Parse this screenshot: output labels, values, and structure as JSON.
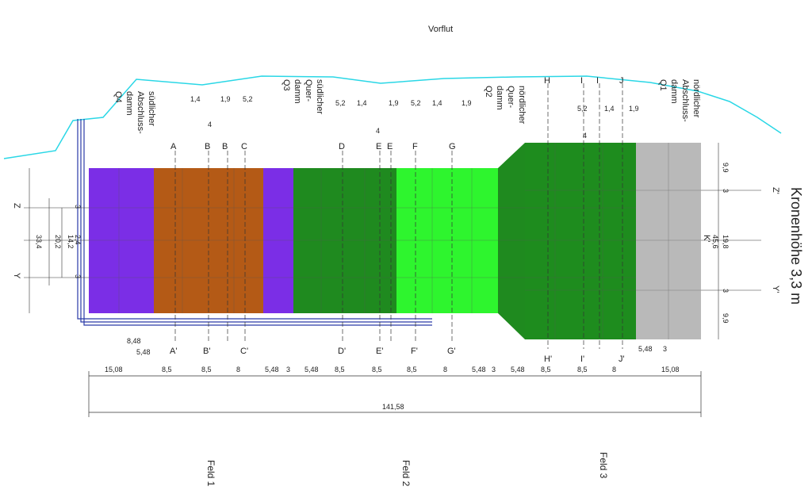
{
  "title": "Vorflut",
  "crest_label": "Kronenhöhe 3,3 m",
  "fields": [
    "Feld 1",
    "Feld 2",
    "Feld 3"
  ],
  "dams": {
    "q4": [
      "südlicher",
      "Abschluss-",
      "damm",
      "Q4"
    ],
    "q3": [
      "südlicher",
      "Quer-",
      "damm",
      "Q3"
    ],
    "q2": [
      "nördlicher",
      "Quer-",
      "damm",
      "Q2"
    ],
    "q1": [
      "nördlicher",
      "Abschluss-",
      "damm",
      "Q1"
    ]
  },
  "section_labels": {
    "top": [
      "A",
      "B",
      "B",
      "C",
      "D",
      "E",
      "E",
      "F",
      "G",
      "H",
      "I",
      "I",
      "J"
    ],
    "bottom": [
      "A'",
      "B'",
      "C'",
      "D'",
      "E'",
      "F'",
      "G'",
      "H'",
      "I'",
      "J'"
    ]
  },
  "axis_labels": {
    "left": [
      "Z",
      "Y"
    ],
    "right": [
      "Z'",
      "K'",
      "Y'"
    ]
  },
  "left_dims": [
    "33,4",
    "20,2",
    "14,2",
    "2,4",
    "3",
    "3"
  ],
  "right_dims": [
    "9,9",
    "3",
    "19,8",
    "45,6",
    "3",
    "9,9"
  ],
  "bottom_dims": [
    "15,08",
    "8,5",
    "8,5",
    "8",
    "5,48",
    "3",
    "5,48",
    "8,5",
    "8,5",
    "8,5",
    "8",
    "5,48",
    "3",
    "5,48",
    "8,5",
    "8,5",
    "8",
    "15,08"
  ],
  "total_dim": "141,58",
  "small_dims": {
    "lower_left": [
      "8,48",
      "5,48"
    ],
    "lower_right": [
      "5,48",
      "3"
    ],
    "top_values": [
      "1,4",
      "1,9",
      "5,2",
      "4"
    ]
  },
  "colors": {
    "river": "#2ad7e6",
    "drain": "#2a3aa8",
    "dam_purple": "#7b2ee6",
    "field1": "#b45a16",
    "field2_dark": "#1f8a1f",
    "field2_light": "#2ef52e",
    "field3": "#1e8c1e",
    "gray": "#b9b9b9"
  }
}
